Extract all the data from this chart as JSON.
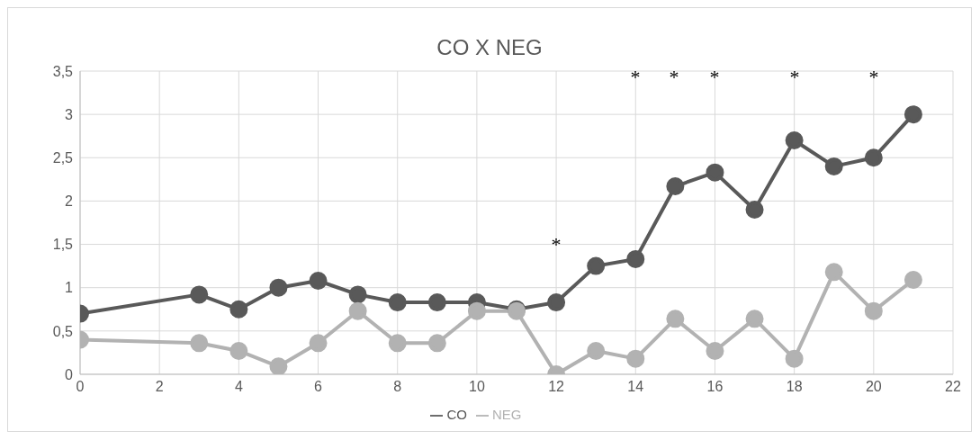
{
  "chart_data": {
    "type": "line",
    "title": "CO X NEG",
    "x": [
      0,
      3,
      4,
      5,
      6,
      7,
      8,
      9,
      10,
      11,
      12,
      13,
      14,
      15,
      16,
      17,
      18,
      19,
      20,
      21
    ],
    "series": [
      {
        "name": "CO",
        "color": "#595959",
        "values": [
          0.7,
          0.92,
          0.75,
          1.0,
          1.08,
          0.92,
          0.83,
          0.83,
          0.83,
          0.75,
          0.83,
          1.25,
          1.33,
          2.17,
          2.33,
          1.9,
          2.7,
          2.4,
          2.5,
          3.0
        ]
      },
      {
        "name": "NEG",
        "color": "#b2b2b2",
        "values": [
          0.4,
          0.36,
          0.27,
          0.09,
          0.36,
          0.73,
          0.36,
          0.36,
          0.73,
          0.73,
          0,
          0.27,
          0.18,
          0.64,
          0.27,
          0.64,
          0.18,
          1.18,
          0.73,
          1.09
        ]
      }
    ],
    "xlim": [
      0,
      22
    ],
    "xticks": [
      0,
      2,
      4,
      6,
      8,
      10,
      12,
      14,
      16,
      18,
      20,
      22
    ],
    "ylim": [
      0,
      3.5
    ],
    "yticks": [
      0,
      {
        "value": 0.5,
        "label": "0,5"
      },
      1,
      {
        "value": 1.5,
        "label": "1,5"
      },
      2,
      {
        "value": 2.5,
        "label": "2,5"
      },
      3,
      {
        "value": 3.5,
        "label": "3,5"
      }
    ],
    "grid": true,
    "legend": "bottom",
    "marker": "circle",
    "line_style": "solid",
    "annotations": [
      "*",
      "*",
      "*",
      "*",
      "*",
      "*"
    ]
  }
}
